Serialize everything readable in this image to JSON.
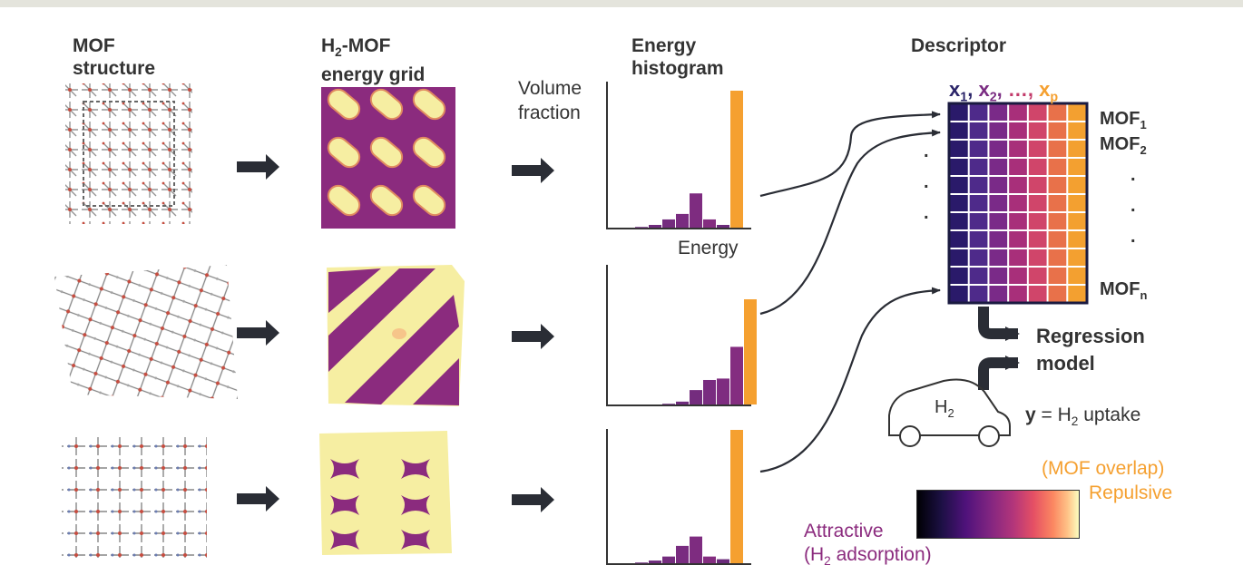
{
  "headers": {
    "mof_structure": [
      "MOF",
      "structure"
    ],
    "energy_grid_pre": "H",
    "energy_grid_sub": "2",
    "energy_grid_post": "-MOF",
    "energy_grid_line2": "energy grid",
    "energy_histogram": [
      "Energy",
      "histogram"
    ],
    "descriptor": "Descriptor"
  },
  "axis": {
    "ylabel": [
      "Volume",
      "fraction"
    ],
    "xlabel": "Energy"
  },
  "descriptor": {
    "features": [
      {
        "text": "x",
        "sub": "1",
        "sep": ",",
        "color": "#2a2468"
      },
      {
        "text": "x",
        "sub": "2",
        "sep": ",",
        "color": "#7a2c82"
      },
      {
        "text": "…,",
        "sub": "",
        "sep": "",
        "color": "#c23a6a"
      },
      {
        "text": "x",
        "sub": "p",
        "sep": "",
        "color": "#f5a030"
      }
    ],
    "rows": {
      "mof1": "MOF",
      "mof1_sub": "1",
      "mof2": "MOF",
      "mof2_sub": "2",
      "mofn": "MOF",
      "mofn_sub": "n"
    },
    "column_colors": [
      "#2a1a6a",
      "#4e2a8a",
      "#7a2a88",
      "#a82f7a",
      "#d0456a",
      "#e8714a",
      "#f3a030"
    ]
  },
  "regression": [
    "Regression",
    "model"
  ],
  "car_label": {
    "pre": "H",
    "sub": "2"
  },
  "target": {
    "y": "y",
    "rest_pre": " = H",
    "sub": "2",
    "rest_post": " uptake"
  },
  "colorbar": {
    "top_label": "(MOF overlap)",
    "repulsive": "Repulsive",
    "attractive": "Attractive",
    "adsorption_pre": "(H",
    "adsorption_sub": "2",
    "adsorption_post": " adsorption)"
  },
  "colors": {
    "orange": "#f5a030",
    "purple": "#8b2b7e",
    "arrow": "#2a2d35",
    "yellow": "#f6eea2"
  },
  "chart_data": [
    {
      "type": "bar",
      "values": [
        0.5,
        2,
        6,
        10,
        25,
        6,
        2,
        100
      ],
      "xlabel": "Energy",
      "ylabel": "Volume fraction"
    },
    {
      "type": "bar",
      "values": [
        0.5,
        2,
        10,
        17,
        18,
        40,
        73
      ],
      "xlabel": "",
      "ylabel": ""
    },
    {
      "type": "bar",
      "values": [
        0.5,
        2,
        5,
        13,
        20,
        5,
        3,
        100
      ],
      "xlabel": "",
      "ylabel": ""
    }
  ]
}
